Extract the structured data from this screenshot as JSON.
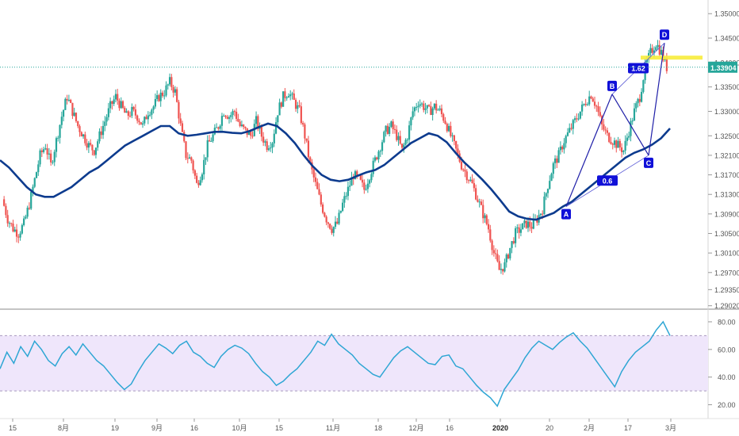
{
  "chart_data": {
    "type": "line",
    "price_panel": {
      "series_name": "",
      "price_axis_ticks": [
        "1.35000",
        "1.34500",
        "1.34000",
        "1.33500",
        "1.33000",
        "1.32500",
        "1.32100",
        "1.31700",
        "1.31300",
        "1.30900",
        "1.30500",
        "1.30100",
        "1.29700",
        "1.29350",
        "1.29020"
      ],
      "price_axis_values": [
        1.35,
        1.345,
        1.34,
        1.335,
        1.33,
        1.325,
        1.321,
        1.317,
        1.313,
        1.309,
        1.305,
        1.301,
        1.297,
        1.2935,
        1.2902
      ],
      "current_price_label": "1.33904",
      "current_price": 1.33904,
      "ylim": [
        1.2895,
        1.3515
      ],
      "close_series": [
        1.312,
        1.308,
        1.306,
        1.305,
        1.307,
        1.311,
        1.316,
        1.321,
        1.323,
        1.319,
        1.324,
        1.329,
        1.333,
        1.33,
        1.327,
        1.325,
        1.323,
        1.322,
        1.325,
        1.328,
        1.331,
        1.333,
        1.331,
        1.329,
        1.33,
        1.329,
        1.327,
        1.33,
        1.331,
        1.333,
        1.334,
        1.336,
        1.334,
        1.327,
        1.321,
        1.32,
        1.315,
        1.318,
        1.323,
        1.325,
        1.327,
        1.33,
        1.329,
        1.33,
        1.327,
        1.326,
        1.325,
        1.328,
        1.325,
        1.323,
        1.324,
        1.33,
        1.333,
        1.334,
        1.332,
        1.33,
        1.325,
        1.319,
        1.315,
        1.311,
        1.308,
        1.306,
        1.307,
        1.311,
        1.314,
        1.317,
        1.316,
        1.314,
        1.317,
        1.32,
        1.323,
        1.326,
        1.327,
        1.325,
        1.322,
        1.325,
        1.33,
        1.332,
        1.331,
        1.33,
        1.331,
        1.33,
        1.328,
        1.325,
        1.322,
        1.319,
        1.317,
        1.315,
        1.312,
        1.309,
        1.306,
        1.301,
        1.2975,
        1.2985,
        1.302,
        1.305,
        1.306,
        1.307,
        1.3065,
        1.308,
        1.31,
        1.315,
        1.319,
        1.321,
        1.324,
        1.326,
        1.328,
        1.33,
        1.332,
        1.3335,
        1.331,
        1.327,
        1.325,
        1.324,
        1.323,
        1.322,
        1.326,
        1.33,
        1.333,
        1.339,
        1.342,
        1.344,
        1.342,
        1.339
      ],
      "moving_average_series": [
        1.32,
        1.3185,
        1.3165,
        1.3145,
        1.313,
        1.3125,
        1.3125,
        1.3135,
        1.3145,
        1.316,
        1.3175,
        1.3185,
        1.32,
        1.3215,
        1.323,
        1.324,
        1.325,
        1.326,
        1.327,
        1.327,
        1.3255,
        1.325,
        1.3252,
        1.3255,
        1.3258,
        1.3258,
        1.3256,
        1.3255,
        1.326,
        1.3268,
        1.3275,
        1.327,
        1.3255,
        1.3235,
        1.321,
        1.3188,
        1.317,
        1.316,
        1.3157,
        1.316,
        1.3168,
        1.3175,
        1.318,
        1.319,
        1.3205,
        1.322,
        1.3235,
        1.3245,
        1.3255,
        1.325,
        1.3237,
        1.3215,
        1.3195,
        1.3178,
        1.316,
        1.314,
        1.3118,
        1.3095,
        1.3085,
        1.308,
        1.3078,
        1.3085,
        1.3092,
        1.3105,
        1.3115,
        1.313,
        1.3145,
        1.316,
        1.3175,
        1.319,
        1.3205,
        1.3215,
        1.3222,
        1.3232,
        1.3245,
        1.3265
      ],
      "harmonic_pattern": {
        "points": [
          {
            "label": "A",
            "price": 1.3105
          },
          {
            "label": "B",
            "price": 1.3335
          },
          {
            "label": "C",
            "price": 1.321
          },
          {
            "label": "D",
            "price": 1.344
          }
        ],
        "ratio_labels": [
          "0.6",
          "1.62"
        ],
        "d_zone_price": 1.341
      }
    },
    "rsi_panel": {
      "series_name": "",
      "axis_ticks": [
        "80.00",
        "60.00",
        "40.00",
        "20.00"
      ],
      "axis_values": [
        80,
        60,
        40,
        20
      ],
      "band_upper": 70,
      "band_lower": 30,
      "ylim": [
        10,
        88
      ],
      "series": [
        46,
        58,
        50,
        62,
        55,
        66,
        60,
        52,
        48,
        57,
        62,
        56,
        64,
        58,
        52,
        48,
        42,
        36,
        31,
        35,
        44,
        52,
        58,
        64,
        61,
        57,
        63,
        66,
        58,
        55,
        50,
        47,
        55,
        60,
        63,
        61,
        57,
        50,
        44,
        40,
        34,
        37,
        42,
        46,
        52,
        58,
        66,
        63,
        71,
        64,
        60,
        56,
        50,
        46,
        42,
        40,
        47,
        54,
        59,
        62,
        58,
        54,
        50,
        49,
        55,
        56,
        48,
        46,
        40,
        34,
        29,
        25,
        19,
        31,
        38,
        45,
        54,
        61,
        66,
        63,
        60,
        65,
        69,
        72,
        66,
        61,
        54,
        47,
        40,
        33,
        44,
        52,
        58,
        62,
        66,
        74,
        80,
        70
      ]
    },
    "time_axis_labels": [
      "15",
      "8月",
      "19",
      "9月",
      "16",
      "10月",
      "15",
      "11月",
      "18",
      "12月",
      "16",
      "2020",
      "20",
      "2月",
      "17",
      "3月"
    ],
    "grid": true,
    "legend": "none"
  }
}
